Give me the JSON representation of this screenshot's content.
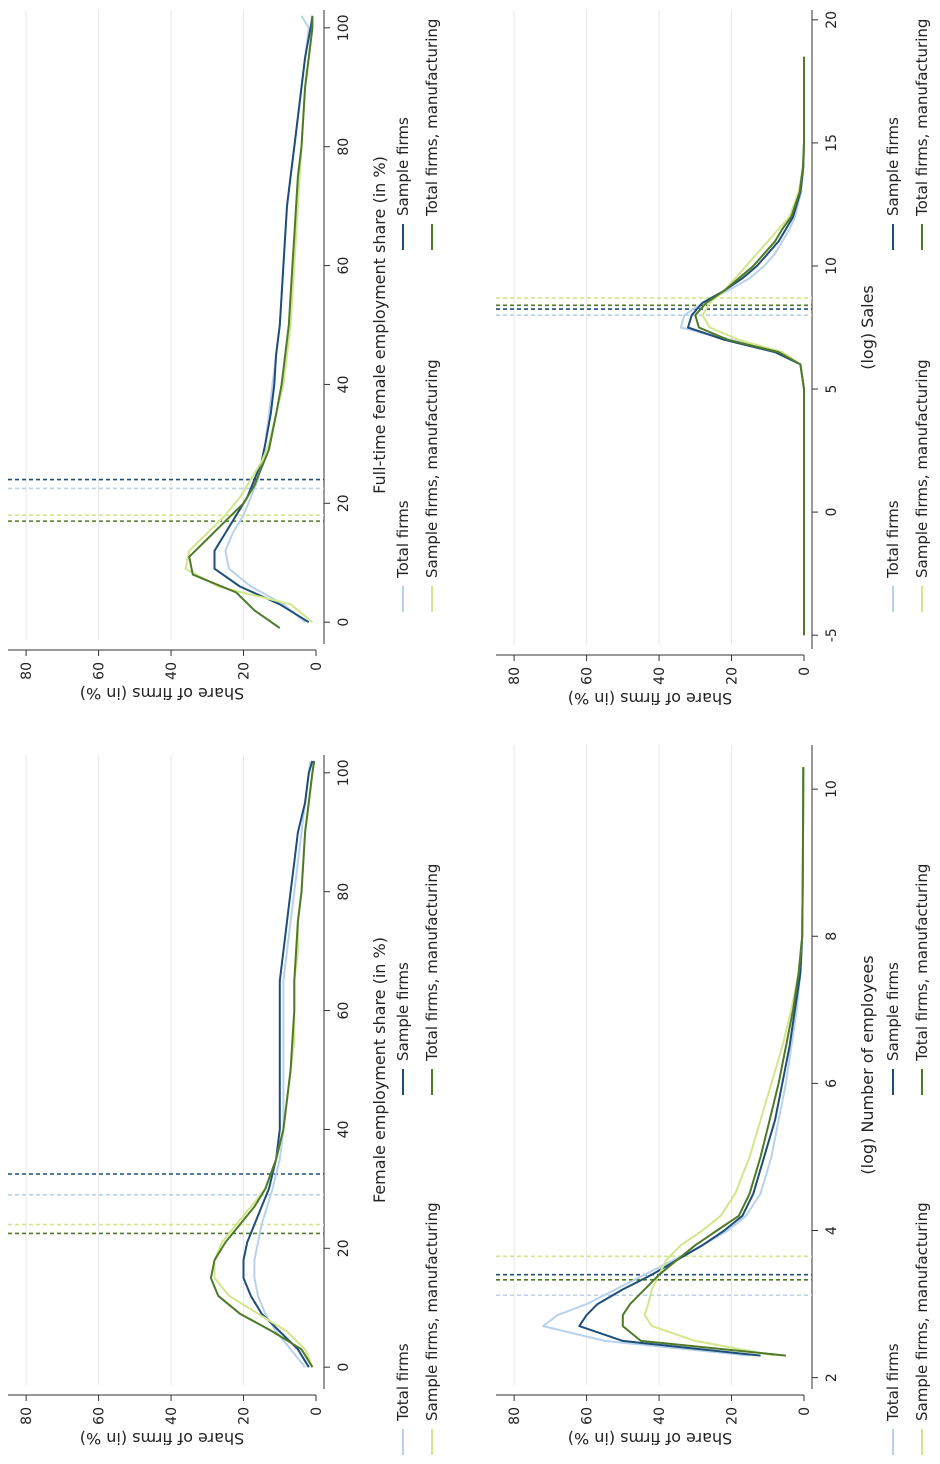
{
  "colors": {
    "total_firms": "#b8d2ee",
    "sample_firms": "#1f4e79",
    "sample_manuf": "#d2e68c",
    "total_manuf": "#4e7a2a"
  },
  "legend": {
    "total_firms": "Total firms",
    "sample_firms": "Sample firms",
    "sample_manuf": "Sample firms, manufacturing",
    "total_manuf": "Total firms, manufacturing"
  },
  "chart_data": [
    {
      "id": "fes",
      "type": "line",
      "rotation": "rotated 90 degrees counter-clockwise",
      "title": "",
      "xlabel": "Female employment share (in %)",
      "ylabel": "Share of firms (in %)",
      "xlim": [
        -3,
        103
      ],
      "ylim": [
        0,
        85
      ],
      "xticks": [
        "0",
        "20",
        "40",
        "60",
        "80",
        "100"
      ],
      "xtick_values": [
        0,
        20,
        40,
        60,
        80,
        100
      ],
      "yticks": [
        "0",
        "20",
        "40",
        "60",
        "80"
      ],
      "ytick_values": [
        0,
        20,
        40,
        60,
        80
      ],
      "grid": true,
      "legend_position": "bottom",
      "mean_lines": [
        {
          "series": "total_firms",
          "x": 29
        },
        {
          "series": "sample_firms",
          "x": 32.5
        },
        {
          "series": "sample_manuf",
          "x": 24
        },
        {
          "series": "total_manuf",
          "x": 22.5
        }
      ],
      "series": [
        {
          "key": "total_firms",
          "name": "Total firms",
          "x": [
            0,
            3,
            6,
            9,
            12,
            15,
            18,
            21,
            24,
            27,
            30,
            35,
            40,
            45,
            50,
            55,
            60,
            65,
            70,
            75,
            80,
            85,
            90,
            95,
            100,
            102
          ],
          "y": [
            3,
            7,
            11,
            14,
            16,
            17,
            17,
            16,
            15,
            13.5,
            12,
            10,
            9,
            9,
            9,
            9,
            9,
            9,
            8,
            7,
            6,
            5,
            4,
            3,
            2,
            1.5
          ]
        },
        {
          "key": "sample_firms",
          "name": "Sample firms",
          "x": [
            0,
            3,
            6,
            9,
            12,
            15,
            18,
            21,
            24,
            27,
            30,
            35,
            40,
            45,
            50,
            55,
            60,
            65,
            70,
            75,
            80,
            85,
            90,
            95,
            100,
            102
          ],
          "y": [
            2,
            5,
            10,
            15,
            18,
            20,
            20,
            19,
            17,
            15,
            13,
            11,
            10,
            10,
            10,
            10,
            10,
            10,
            9,
            8,
            7,
            6,
            5,
            3,
            2,
            1
          ]
        },
        {
          "key": "sample_manuf",
          "name": "Sample firms, manufacturing",
          "x": [
            0,
            3,
            6,
            9,
            12,
            15,
            18,
            21,
            24,
            27,
            30,
            35,
            40,
            45,
            50,
            55,
            60,
            65,
            70,
            75,
            80,
            85,
            90,
            95,
            100,
            102
          ],
          "y": [
            1,
            3,
            8,
            16,
            24,
            28,
            28,
            26,
            22,
            18,
            14,
            11,
            9,
            8,
            7,
            6,
            6,
            6,
            5,
            5,
            4,
            3.5,
            3,
            2,
            1,
            0.5
          ]
        },
        {
          "key": "total_manuf",
          "name": "Total firms, manufacturing",
          "x": [
            0,
            3,
            6,
            9,
            12,
            15,
            18,
            21,
            24,
            27,
            30,
            35,
            40,
            45,
            50,
            55,
            60,
            65,
            70,
            75,
            80,
            85,
            90,
            95,
            100,
            102
          ],
          "y": [
            1,
            4,
            12,
            21,
            27,
            29,
            28,
            25,
            21,
            17,
            14,
            11,
            9,
            8,
            7,
            6.5,
            6,
            6,
            5.5,
            5,
            4,
            3.5,
            3,
            2,
            1,
            0.5
          ]
        }
      ]
    },
    {
      "id": "ftfes",
      "type": "line",
      "rotation": "rotated 90 degrees counter-clockwise",
      "title": "",
      "xlabel": "Full-time female employment share (in %)",
      "ylabel": "Share of firms (in %)",
      "xlim": [
        -3,
        103
      ],
      "ylim": [
        0,
        85
      ],
      "xticks": [
        "0",
        "20",
        "40",
        "60",
        "80",
        "100"
      ],
      "xtick_values": [
        0,
        20,
        40,
        60,
        80,
        100
      ],
      "yticks": [
        "0",
        "20",
        "40",
        "60",
        "80"
      ],
      "ytick_values": [
        0,
        20,
        40,
        60,
        80
      ],
      "grid": true,
      "legend_position": "bottom",
      "mean_lines": [
        {
          "series": "total_firms",
          "x": 22.5
        },
        {
          "series": "sample_firms",
          "x": 24
        },
        {
          "series": "sample_manuf",
          "x": 18
        },
        {
          "series": "total_manuf",
          "x": 17
        }
      ],
      "series": [
        {
          "key": "total_firms",
          "name": "Total firms",
          "x": [
            0,
            3,
            6,
            9,
            12,
            15,
            18,
            21,
            24,
            27,
            30,
            35,
            40,
            45,
            50,
            55,
            60,
            65,
            70,
            75,
            80,
            85,
            90,
            95,
            100,
            102
          ],
          "y": [
            3,
            9,
            18,
            24,
            25,
            23,
            20,
            18,
            16,
            15,
            14,
            13,
            12,
            11,
            10,
            9.5,
            9,
            8.5,
            8,
            7,
            6,
            5,
            4,
            3,
            2,
            4
          ]
        },
        {
          "key": "sample_firms",
          "name": "Sample firms",
          "x": [
            0,
            3,
            6,
            9,
            12,
            15,
            18,
            21,
            24,
            27,
            30,
            35,
            40,
            45,
            50,
            55,
            60,
            65,
            70,
            75,
            80,
            85,
            90,
            95,
            100,
            102
          ],
          "y": [
            2,
            10,
            21,
            28,
            28,
            25,
            22,
            19,
            17,
            15,
            14,
            12.5,
            11.5,
            11,
            10,
            9.5,
            9,
            8.5,
            8,
            7,
            6,
            5,
            4,
            3,
            1.5,
            1
          ]
        },
        {
          "key": "sample_manuf",
          "name": "Sample firms, manufacturing",
          "x": [
            0,
            3,
            6,
            9,
            12,
            15,
            18,
            21,
            24,
            27,
            30,
            35,
            40,
            45,
            50,
            55,
            60,
            65,
            70,
            75,
            80,
            85,
            90,
            95,
            100,
            102
          ],
          "y": [
            1,
            7,
            27,
            36,
            35,
            30,
            25,
            21,
            18,
            15,
            13,
            11,
            9,
            8,
            7,
            6.5,
            6,
            5.5,
            5,
            4.5,
            4,
            3.5,
            3,
            2,
            1,
            1
          ]
        },
        {
          "key": "total_manuf",
          "name": "Total firms, manufacturing",
          "x": [
            -1,
            2,
            5,
            8,
            11,
            14,
            17,
            20,
            23,
            26,
            29,
            35,
            40,
            45,
            50,
            55,
            60,
            65,
            70,
            75,
            80,
            85,
            90,
            95,
            100,
            102
          ],
          "y": [
            10,
            17,
            22,
            34,
            35,
            30,
            25,
            20,
            17,
            15,
            13,
            11,
            9.5,
            8.5,
            7.5,
            7,
            6.5,
            6,
            5.5,
            5,
            4,
            3.5,
            3,
            2,
            1,
            1
          ]
        }
      ]
    },
    {
      "id": "emp",
      "type": "line",
      "rotation": "rotated 90 degrees counter-clockwise",
      "title": "",
      "xlabel": "(log) Number of employees",
      "ylabel": "Share of firms (in %)",
      "xlim": [
        1.9,
        10.6
      ],
      "ylim": [
        0,
        85
      ],
      "xticks": [
        "2",
        "4",
        "6",
        "8",
        "10"
      ],
      "xtick_values": [
        2,
        4,
        6,
        8,
        10
      ],
      "yticks": [
        "0",
        "20",
        "40",
        "60",
        "80"
      ],
      "ytick_values": [
        0,
        20,
        40,
        60,
        80
      ],
      "grid": true,
      "legend_position": "bottom",
      "mean_lines": [
        {
          "series": "total_firms",
          "x": 3.12
        },
        {
          "series": "sample_firms",
          "x": 3.4
        },
        {
          "series": "sample_manuf",
          "x": 3.65
        },
        {
          "series": "total_manuf",
          "x": 3.33
        }
      ],
      "series": [
        {
          "key": "total_firms",
          "name": "Total firms",
          "x": [
            2.3,
            2.5,
            2.7,
            2.85,
            3.0,
            3.2,
            3.4,
            3.6,
            3.8,
            4.0,
            4.2,
            4.5,
            5.0,
            5.5,
            6.0,
            6.5,
            7.0,
            7.5,
            8,
            9,
            10.3
          ],
          "y": [
            15,
            55,
            72,
            68,
            60,
            52,
            44,
            36,
            28,
            21,
            16,
            12,
            9,
            7,
            5,
            3.5,
            2,
            1,
            0.5,
            0.3,
            0.2
          ]
        },
        {
          "key": "sample_firms",
          "name": "Sample firms",
          "x": [
            2.3,
            2.5,
            2.7,
            2.85,
            3.0,
            3.2,
            3.4,
            3.6,
            3.8,
            4.0,
            4.2,
            4.5,
            5.0,
            5.5,
            6.0,
            6.5,
            7.0,
            7.5,
            8,
            9,
            10.3
          ],
          "y": [
            12,
            50,
            62,
            60,
            57,
            50,
            42,
            35,
            28,
            22,
            17,
            14,
            11,
            8,
            6,
            4,
            2.5,
            1,
            0.5,
            0.3,
            0.2
          ]
        },
        {
          "key": "sample_manuf",
          "name": "Sample firms, manufacturing",
          "x": [
            2.3,
            2.5,
            2.7,
            2.85,
            3.0,
            3.2,
            3.4,
            3.6,
            3.8,
            4.0,
            4.2,
            4.5,
            5.0,
            5.5,
            6.0,
            6.5,
            7.0,
            7.5,
            8,
            9,
            10.3
          ],
          "y": [
            8,
            30,
            42,
            44,
            43,
            42,
            40,
            38,
            34,
            28,
            23,
            19,
            15,
            12,
            9,
            6,
            3.5,
            1.5,
            0.5,
            0.3,
            0.2
          ]
        },
        {
          "key": "total_manuf",
          "name": "Total firms, manufacturing",
          "x": [
            2.3,
            2.5,
            2.7,
            2.85,
            3.0,
            3.2,
            3.4,
            3.6,
            3.8,
            4.0,
            4.2,
            4.5,
            5.0,
            5.5,
            6.0,
            6.5,
            7.0,
            7.5,
            8,
            9,
            10.3
          ],
          "y": [
            5,
            45,
            50,
            50,
            48,
            44,
            40,
            35,
            30,
            24,
            18,
            15,
            12,
            9.5,
            7,
            5,
            3,
            1.5,
            0.5,
            0.3,
            0.2
          ]
        }
      ]
    },
    {
      "id": "sales",
      "type": "line",
      "rotation": "rotated 90 degrees counter-clockwise",
      "title": "",
      "xlabel": "(log) Sales",
      "ylabel": "Share of firms (in %)",
      "xlim": [
        -5.4,
        20.4
      ],
      "ylim": [
        0,
        85
      ],
      "xticks": [
        "-5",
        "0",
        "5",
        "10",
        "15",
        "20"
      ],
      "xtick_values": [
        -5,
        0,
        5,
        10,
        15,
        20
      ],
      "yticks": [
        "0",
        "20",
        "40",
        "60",
        "80"
      ],
      "ytick_values": [
        0,
        20,
        40,
        60,
        80
      ],
      "grid": true,
      "legend_position": "bottom",
      "mean_lines": [
        {
          "series": "total_firms",
          "x": 8.0
        },
        {
          "series": "sample_firms",
          "x": 8.25
        },
        {
          "series": "sample_manuf",
          "x": 8.7
        },
        {
          "series": "total_manuf",
          "x": 8.4
        }
      ],
      "series": [
        {
          "key": "total_firms",
          "name": "Total firms",
          "x": [
            -5,
            0,
            5,
            6,
            6.5,
            7,
            7.5,
            8,
            8.5,
            9,
            9.5,
            10,
            10.5,
            11,
            11.5,
            12,
            13,
            14,
            15,
            18.5
          ],
          "y": [
            0,
            0,
            0,
            1,
            8,
            20,
            34,
            33,
            28,
            21,
            15,
            11,
            8,
            6,
            4,
            2.5,
            0.8,
            0.2,
            0,
            0
          ]
        },
        {
          "key": "sample_firms",
          "name": "Sample firms",
          "x": [
            -5,
            0,
            5,
            6,
            6.5,
            7,
            7.5,
            8,
            8.5,
            9,
            9.5,
            10,
            10.5,
            11,
            11.5,
            12,
            13,
            14,
            15,
            18.5
          ],
          "y": [
            0,
            0,
            0,
            1,
            8,
            22,
            32,
            31,
            28,
            22,
            17,
            13,
            10,
            7,
            5,
            3,
            1,
            0.2,
            0,
            0
          ]
        },
        {
          "key": "sample_manuf",
          "name": "Sample firms, manufacturing",
          "x": [
            -5,
            0,
            5,
            6,
            6.5,
            7,
            7.5,
            8,
            8.5,
            9,
            9.5,
            10,
            10.5,
            11,
            11.5,
            12,
            13,
            14,
            15,
            18.5
          ],
          "y": [
            0,
            0,
            0,
            1,
            6,
            18,
            26,
            28,
            26,
            22,
            19,
            16,
            13,
            10,
            7,
            4,
            1.5,
            0.3,
            0,
            0
          ]
        },
        {
          "key": "total_manuf",
          "name": "Total firms, manufacturing",
          "x": [
            -5,
            0,
            5,
            6,
            6.5,
            7,
            7.5,
            8,
            8.5,
            9,
            9.5,
            10,
            10.5,
            11,
            11.5,
            12,
            13,
            14,
            15,
            18.5
          ],
          "y": [
            0,
            0,
            0,
            1,
            7,
            21,
            29,
            30,
            27,
            22,
            18,
            14,
            11,
            8,
            6,
            3.5,
            1.2,
            0.3,
            0,
            0
          ]
        }
      ]
    }
  ]
}
